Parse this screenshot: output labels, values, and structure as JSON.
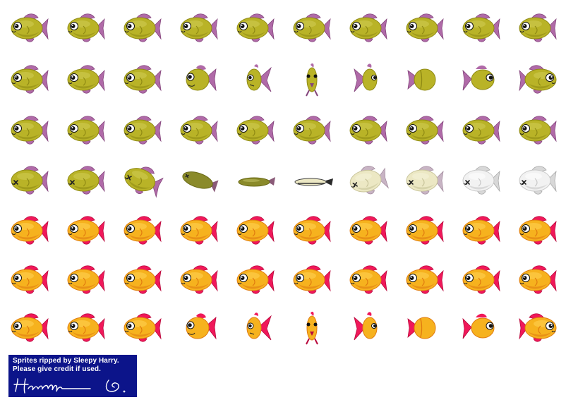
{
  "palette": {
    "green": {
      "body": "#b9b327",
      "shade": "#8f8a14",
      "fin": "#b06aa8",
      "finDark": "#84457c",
      "belly": "#d4cf5a"
    },
    "gold": {
      "body": "#f6b21e",
      "shade": "#e07b10",
      "fin": "#f0185a",
      "finDark": "#b8083c",
      "belly": "#ffd65a"
    },
    "dead1": {
      "body": "#8a8a2a",
      "shade": "#6a6a18",
      "fin": "#8a5a78",
      "finDark": "#5e3a54",
      "belly": "#a8a84a"
    },
    "pale": {
      "body": "#ece8c4",
      "shade": "#c8c49a",
      "fin": "#c8b4c4",
      "finDark": "#a48ea0",
      "belly": "#f6f4dc"
    },
    "white": {
      "body": "#f2f2f2",
      "shade": "#c8c8c8",
      "fin": "#d8d8d8",
      "finDark": "#a8a8a8",
      "belly": "#ffffff"
    }
  },
  "rows": [
    {
      "name": "green-swim",
      "frames": [
        {
          "pose": "side"
        },
        {
          "pose": "side"
        },
        {
          "pose": "side"
        },
        {
          "pose": "side"
        },
        {
          "pose": "side"
        },
        {
          "pose": "side"
        },
        {
          "pose": "side"
        },
        {
          "pose": "side"
        },
        {
          "pose": "side"
        },
        {
          "pose": "side"
        }
      ]
    },
    {
      "name": "green-turn",
      "frames": [
        {
          "pose": "side"
        },
        {
          "pose": "side"
        },
        {
          "pose": "side"
        },
        {
          "pose": "turn1"
        },
        {
          "pose": "turn2"
        },
        {
          "pose": "front"
        },
        {
          "pose": "turn2r"
        },
        {
          "pose": "turn1r"
        },
        {
          "pose": "back"
        },
        {
          "pose": "backside"
        }
      ]
    },
    {
      "name": "green-swim-2",
      "frames": [
        {
          "pose": "side"
        },
        {
          "pose": "side"
        },
        {
          "pose": "side"
        },
        {
          "pose": "side"
        },
        {
          "pose": "side"
        },
        {
          "pose": "side"
        },
        {
          "pose": "side"
        },
        {
          "pose": "side"
        },
        {
          "pose": "side"
        },
        {
          "pose": "side"
        }
      ]
    },
    {
      "name": "green-death",
      "frames": [
        {
          "pose": "dead",
          "pal": "green"
        },
        {
          "pose": "dead",
          "pal": "green"
        },
        {
          "pose": "dead",
          "pal": "green",
          "tilt": 20
        },
        {
          "pose": "flat1",
          "pal": "dead1"
        },
        {
          "pose": "flat2",
          "pal": "dead1"
        },
        {
          "pose": "flat3",
          "pal": "pale"
        },
        {
          "pose": "dead",
          "pal": "pale",
          "tilt": -10
        },
        {
          "pose": "dead",
          "pal": "pale"
        },
        {
          "pose": "dead",
          "pal": "white"
        },
        {
          "pose": "dead",
          "pal": "white"
        }
      ]
    },
    {
      "name": "gold-swim",
      "frames": [
        {
          "pose": "side"
        },
        {
          "pose": "side"
        },
        {
          "pose": "side"
        },
        {
          "pose": "side"
        },
        {
          "pose": "side"
        },
        {
          "pose": "side"
        },
        {
          "pose": "side"
        },
        {
          "pose": "side"
        },
        {
          "pose": "side"
        },
        {
          "pose": "side"
        }
      ]
    },
    {
      "name": "gold-swim-2",
      "frames": [
        {
          "pose": "side"
        },
        {
          "pose": "side"
        },
        {
          "pose": "side"
        },
        {
          "pose": "side"
        },
        {
          "pose": "side"
        },
        {
          "pose": "side"
        },
        {
          "pose": "side"
        },
        {
          "pose": "side"
        },
        {
          "pose": "side"
        },
        {
          "pose": "side"
        }
      ]
    },
    {
      "name": "gold-turn",
      "frames": [
        {
          "pose": "side"
        },
        {
          "pose": "side"
        },
        {
          "pose": "side"
        },
        {
          "pose": "turn1"
        },
        {
          "pose": "turn2"
        },
        {
          "pose": "front"
        },
        {
          "pose": "turn2r"
        },
        {
          "pose": "turn1r"
        },
        {
          "pose": "back"
        },
        {
          "pose": "backside"
        }
      ]
    }
  ],
  "row_palette": [
    "green",
    "green",
    "green",
    "green",
    "gold",
    "gold",
    "gold"
  ],
  "credit": {
    "line1": "Sprites ripped by Sleepy Harry.",
    "line2": "Please give credit if used."
  }
}
